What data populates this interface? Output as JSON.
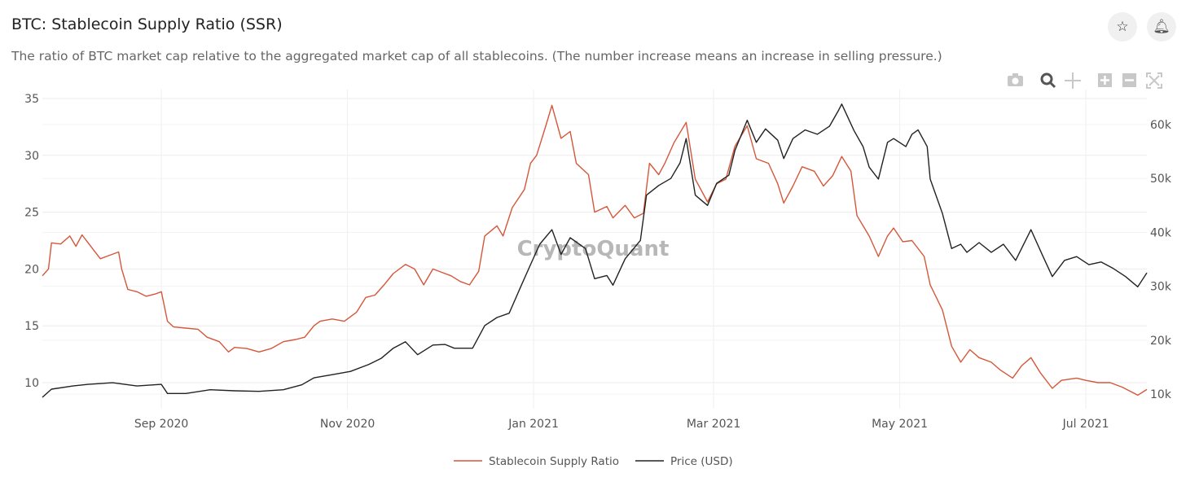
{
  "header": {
    "title": "BTC: Stablecoin Supply Ratio (SSR)",
    "subtitle": "The ratio of BTC market cap relative to the aggregated market cap of all stablecoins. (The number increase means an increase in selling pressure.)",
    "star_icon": "star-icon",
    "bell_icon": "bell-icon"
  },
  "toolbar": [
    "camera-icon",
    "zoom-icon",
    "pan-icon",
    "zoom-in-icon",
    "zoom-out-icon",
    "autoscale-icon"
  ],
  "watermark": "CryptoQuant",
  "chart_data": {
    "type": "line",
    "title": "BTC: Stablecoin Supply Ratio (SSR)",
    "x_unit": "days since start_date",
    "start_date": "2020-07-24",
    "end_day": 362,
    "x_ticks": [
      {
        "label": "Sep 2020",
        "date": "2020-09-01"
      },
      {
        "label": "Nov 2020",
        "date": "2020-11-01"
      },
      {
        "label": "Jan 2021",
        "date": "2021-01-01"
      },
      {
        "label": "Mar 2021",
        "date": "2021-03-01"
      },
      {
        "label": "May 2021",
        "date": "2021-05-01"
      },
      {
        "label": "Jul 2021",
        "date": "2021-07-01"
      }
    ],
    "y_left": {
      "range": [
        8.6,
        35.8
      ],
      "ticks": [
        {
          "v": 10,
          "label": "10"
        },
        {
          "v": 15,
          "label": "15"
        },
        {
          "v": 20,
          "label": "20"
        },
        {
          "v": 25,
          "label": "25"
        },
        {
          "v": 30,
          "label": "30"
        },
        {
          "v": 35,
          "label": "35"
        }
      ]
    },
    "y_right": {
      "range": [
        9000,
        65000
      ],
      "ticks": [
        {
          "v": 10000,
          "label": "10k"
        },
        {
          "v": 20000,
          "label": "20k"
        },
        {
          "v": 30000,
          "label": "30k"
        },
        {
          "v": 40000,
          "label": "40k"
        },
        {
          "v": 50000,
          "label": "50k"
        },
        {
          "v": 60000,
          "label": "60k"
        }
      ]
    },
    "legend_position": "bottom-center",
    "series": [
      {
        "name": "Stablecoin Supply Ratio",
        "axis": "left",
        "color": "#d4573a",
        "points": [
          [
            0,
            19.4
          ],
          [
            2,
            20.0
          ],
          [
            3,
            22.3
          ],
          [
            6,
            22.2
          ],
          [
            9,
            22.9
          ],
          [
            11,
            22.0
          ],
          [
            13,
            23.0
          ],
          [
            15,
            22.3
          ],
          [
            19,
            20.9
          ],
          [
            22,
            21.2
          ],
          [
            25,
            21.5
          ],
          [
            26,
            20.0
          ],
          [
            28,
            18.2
          ],
          [
            31,
            18.0
          ],
          [
            34,
            17.6
          ],
          [
            37,
            17.8
          ],
          [
            39,
            18.0
          ],
          [
            41,
            15.4
          ],
          [
            43,
            14.9
          ],
          [
            47,
            14.8
          ],
          [
            51,
            14.7
          ],
          [
            54,
            14.0
          ],
          [
            58,
            13.6
          ],
          [
            61,
            12.7
          ],
          [
            63,
            13.1
          ],
          [
            67,
            13.0
          ],
          [
            71,
            12.7
          ],
          [
            75,
            13.0
          ],
          [
            79,
            13.6
          ],
          [
            83,
            13.8
          ],
          [
            86,
            14.0
          ],
          [
            89,
            15.0
          ],
          [
            91,
            15.4
          ],
          [
            95,
            15.6
          ],
          [
            99,
            15.4
          ],
          [
            103,
            16.2
          ],
          [
            106,
            17.5
          ],
          [
            109,
            17.7
          ],
          [
            112,
            18.6
          ],
          [
            115,
            19.6
          ],
          [
            119,
            20.4
          ],
          [
            122,
            20.0
          ],
          [
            125,
            18.6
          ],
          [
            128,
            20.0
          ],
          [
            131,
            19.7
          ],
          [
            134,
            19.4
          ],
          [
            137,
            18.9
          ],
          [
            140,
            18.6
          ],
          [
            143,
            19.8
          ],
          [
            145,
            22.9
          ],
          [
            149,
            23.8
          ],
          [
            151,
            22.9
          ],
          [
            154,
            25.4
          ],
          [
            158,
            27.0
          ],
          [
            160,
            29.3
          ],
          [
            162,
            30.0
          ],
          [
            165,
            32.6
          ],
          [
            167,
            34.4
          ],
          [
            170,
            31.5
          ],
          [
            173,
            32.1
          ],
          [
            175,
            29.3
          ],
          [
            179,
            28.3
          ],
          [
            181,
            25.0
          ],
          [
            185,
            25.5
          ],
          [
            187,
            24.5
          ],
          [
            191,
            25.6
          ],
          [
            194,
            24.5
          ],
          [
            197,
            24.9
          ],
          [
            199,
            29.3
          ],
          [
            202,
            28.3
          ],
          [
            204,
            29.3
          ],
          [
            207,
            31.1
          ],
          [
            211,
            32.9
          ],
          [
            214,
            27.9
          ],
          [
            218,
            25.9
          ],
          [
            221,
            27.5
          ],
          [
            224,
            27.9
          ],
          [
            227,
            30.8
          ],
          [
            231,
            32.6
          ],
          [
            234,
            29.7
          ],
          [
            238,
            29.3
          ],
          [
            241,
            27.5
          ],
          [
            243,
            25.8
          ],
          [
            246,
            27.3
          ],
          [
            249,
            29.0
          ],
          [
            253,
            28.6
          ],
          [
            256,
            27.3
          ],
          [
            259,
            28.2
          ],
          [
            262,
            29.9
          ],
          [
            265,
            28.6
          ],
          [
            267,
            24.7
          ],
          [
            271,
            22.9
          ],
          [
            274,
            21.1
          ],
          [
            277,
            22.9
          ],
          [
            279,
            23.6
          ],
          [
            282,
            22.4
          ],
          [
            285,
            22.5
          ],
          [
            289,
            21.1
          ],
          [
            291,
            18.6
          ],
          [
            295,
            16.4
          ],
          [
            298,
            13.2
          ],
          [
            301,
            11.8
          ],
          [
            304,
            12.9
          ],
          [
            307,
            12.2
          ],
          [
            311,
            11.8
          ],
          [
            314,
            11.1
          ],
          [
            318,
            10.4
          ],
          [
            321,
            11.5
          ],
          [
            324,
            12.2
          ],
          [
            327,
            10.9
          ],
          [
            331,
            9.5
          ],
          [
            334,
            10.2
          ],
          [
            339,
            10.4
          ],
          [
            342,
            10.2
          ],
          [
            346,
            10.0
          ],
          [
            350,
            10.0
          ],
          [
            354,
            9.6
          ],
          [
            359,
            8.9
          ],
          [
            362,
            9.4
          ]
        ]
      },
      {
        "name": "Price (USD)",
        "axis": "right",
        "color": "#222222",
        "points": [
          [
            0,
            9400
          ],
          [
            3,
            10900
          ],
          [
            10,
            11500
          ],
          [
            15,
            11800
          ],
          [
            23,
            12100
          ],
          [
            31,
            11500
          ],
          [
            39,
            11800
          ],
          [
            41,
            10100
          ],
          [
            47,
            10100
          ],
          [
            55,
            10800
          ],
          [
            63,
            10600
          ],
          [
            71,
            10500
          ],
          [
            79,
            10800
          ],
          [
            85,
            11700
          ],
          [
            89,
            13000
          ],
          [
            95,
            13600
          ],
          [
            101,
            14200
          ],
          [
            107,
            15500
          ],
          [
            111,
            16600
          ],
          [
            115,
            18500
          ],
          [
            119,
            19700
          ],
          [
            123,
            17300
          ],
          [
            128,
            19100
          ],
          [
            132,
            19200
          ],
          [
            135,
            18500
          ],
          [
            141,
            18500
          ],
          [
            145,
            22700
          ],
          [
            149,
            24200
          ],
          [
            153,
            25000
          ],
          [
            157,
            30200
          ],
          [
            160,
            34000
          ],
          [
            163,
            37800
          ],
          [
            167,
            40500
          ],
          [
            170,
            35900
          ],
          [
            173,
            39000
          ],
          [
            178,
            37000
          ],
          [
            181,
            31400
          ],
          [
            185,
            32000
          ],
          [
            187,
            30200
          ],
          [
            191,
            35100
          ],
          [
            196,
            38500
          ],
          [
            198,
            46900
          ],
          [
            202,
            48700
          ],
          [
            206,
            50000
          ],
          [
            209,
            52900
          ],
          [
            211,
            57400
          ],
          [
            214,
            46900
          ],
          [
            218,
            45000
          ],
          [
            221,
            49100
          ],
          [
            225,
            50600
          ],
          [
            227,
            55200
          ],
          [
            231,
            60800
          ],
          [
            234,
            56700
          ],
          [
            237,
            59200
          ],
          [
            241,
            57100
          ],
          [
            243,
            53700
          ],
          [
            246,
            57400
          ],
          [
            250,
            59000
          ],
          [
            254,
            58200
          ],
          [
            258,
            59700
          ],
          [
            261,
            62700
          ],
          [
            262,
            63800
          ],
          [
            266,
            58900
          ],
          [
            269,
            55900
          ],
          [
            271,
            52100
          ],
          [
            274,
            49900
          ],
          [
            277,
            56700
          ],
          [
            279,
            57400
          ],
          [
            283,
            55900
          ],
          [
            285,
            58200
          ],
          [
            287,
            59000
          ],
          [
            290,
            55900
          ],
          [
            291,
            49900
          ],
          [
            295,
            43500
          ],
          [
            298,
            37000
          ],
          [
            301,
            37800
          ],
          [
            303,
            36300
          ],
          [
            307,
            38100
          ],
          [
            311,
            36300
          ],
          [
            315,
            37800
          ],
          [
            319,
            34800
          ],
          [
            324,
            40500
          ],
          [
            328,
            35500
          ],
          [
            331,
            31800
          ],
          [
            335,
            34800
          ],
          [
            339,
            35500
          ],
          [
            343,
            34000
          ],
          [
            347,
            34500
          ],
          [
            351,
            33300
          ],
          [
            355,
            31800
          ],
          [
            359,
            29900
          ],
          [
            362,
            32500
          ]
        ]
      }
    ]
  }
}
